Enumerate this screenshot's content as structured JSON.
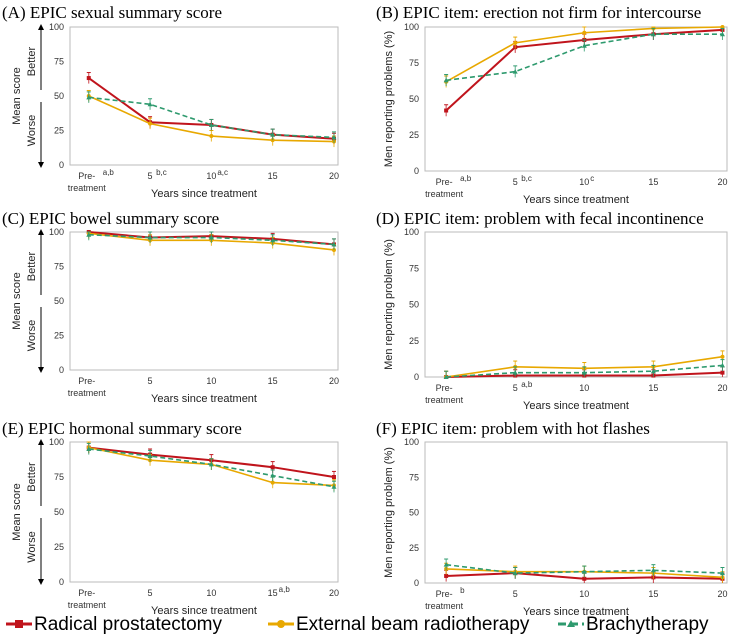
{
  "legend": [
    {
      "name": "Radical prostatectomy",
      "color": "#c0141c",
      "dash": false
    },
    {
      "name": "External beam radiotherapy",
      "color": "#e8a800",
      "dash": false
    },
    {
      "name": "Brachytherapy",
      "color": "#2e9a6e",
      "dash": true
    }
  ],
  "chart_data": [
    {
      "type": "line",
      "title": "(A) EPIC sexual summary score",
      "ylabel": "Mean score",
      "better_label": "Better",
      "worse_label": "Worse",
      "xlabel": "Years since treatment",
      "categories": [
        "Pre-\ntreatment",
        "5",
        "10",
        "15",
        "20"
      ],
      "superscripts": [
        "a,b",
        "b,c",
        "a,c",
        "",
        ""
      ],
      "ylim": [
        0,
        100
      ],
      "yticks": [
        0,
        25,
        50,
        75,
        100
      ],
      "series": [
        {
          "name": "Radical prostatectomy",
          "values": [
            63,
            31,
            29,
            22,
            19
          ]
        },
        {
          "name": "External beam radiotherapy",
          "values": [
            50,
            30,
            21,
            18,
            17
          ]
        },
        {
          "name": "Brachytherapy",
          "values": [
            49,
            44,
            29,
            22,
            20
          ]
        }
      ]
    },
    {
      "type": "line",
      "title": "(B) EPIC item: erection not firm for intercourse",
      "ylabel": "Men reporting problems (%)",
      "xlabel": "Years since treatment",
      "categories": [
        "Pre-\ntreatment",
        "5",
        "10",
        "15",
        "20"
      ],
      "superscripts": [
        "a,b",
        "b,c",
        "c",
        "",
        ""
      ],
      "ylim": [
        0,
        100
      ],
      "yticks": [
        0,
        25,
        50,
        75,
        100
      ],
      "series": [
        {
          "name": "Radical prostatectomy",
          "values": [
            42,
            86,
            91,
            95,
            98
          ]
        },
        {
          "name": "External beam radiotherapy",
          "values": [
            62,
            89,
            96,
            99,
            100
          ]
        },
        {
          "name": "Brachytherapy",
          "values": [
            63,
            69,
            87,
            95,
            95
          ]
        }
      ]
    },
    {
      "type": "line",
      "title": "(C) EPIC bowel summary score",
      "ylabel": "Mean score",
      "better_label": "Better",
      "worse_label": "Worse",
      "xlabel": "Years since treatment",
      "categories": [
        "Pre-\ntreatment",
        "5",
        "10",
        "15",
        "20"
      ],
      "superscripts": [
        "",
        "",
        "",
        "",
        ""
      ],
      "ylim": [
        0,
        100
      ],
      "yticks": [
        0,
        25,
        50,
        75,
        100
      ],
      "series": [
        {
          "name": "Radical prostatectomy",
          "values": [
            100,
            96,
            97,
            95,
            91
          ]
        },
        {
          "name": "External beam radiotherapy",
          "values": [
            99,
            94,
            94,
            92,
            87
          ]
        },
        {
          "name": "Brachytherapy",
          "values": [
            98,
            96,
            96,
            94,
            91
          ]
        }
      ]
    },
    {
      "type": "line",
      "title": "(D) EPIC item: problem with fecal incontinence",
      "ylabel": "Men reporting problem (%)",
      "xlabel": "Years since treatment",
      "categories": [
        "Pre-\ntreatment",
        "5",
        "10",
        "15",
        "20"
      ],
      "superscripts": [
        "",
        "a,b",
        "",
        "",
        ""
      ],
      "ylim": [
        0,
        100
      ],
      "yticks": [
        0,
        25,
        50,
        75,
        100
      ],
      "series": [
        {
          "name": "Radical prostatectomy",
          "values": [
            0,
            1,
            1,
            1,
            3
          ]
        },
        {
          "name": "External beam radiotherapy",
          "values": [
            0,
            7,
            6,
            7,
            14
          ]
        },
        {
          "name": "Brachytherapy",
          "values": [
            0,
            3,
            3,
            4,
            8
          ]
        }
      ]
    },
    {
      "type": "line",
      "title": "(E) EPIC hormonal summary score",
      "ylabel": "Mean score",
      "better_label": "Better",
      "worse_label": "Worse",
      "xlabel": "Years since treatment",
      "categories": [
        "Pre-\ntreatment",
        "5",
        "10",
        "15",
        "20"
      ],
      "superscripts": [
        "",
        "",
        "",
        "a,b",
        ""
      ],
      "ylim": [
        0,
        100
      ],
      "yticks": [
        0,
        25,
        50,
        75,
        100
      ],
      "series": [
        {
          "name": "Radical prostatectomy",
          "values": [
            96,
            91,
            87,
            82,
            75
          ]
        },
        {
          "name": "External beam radiotherapy",
          "values": [
            96,
            87,
            84,
            71,
            69
          ]
        },
        {
          "name": "Brachytherapy",
          "values": [
            95,
            90,
            84,
            76,
            68
          ]
        }
      ]
    },
    {
      "type": "line",
      "title": "(F) EPIC item: problem with hot flashes",
      "ylabel": "Men reporting problem (%)",
      "xlabel": "Years since treatment",
      "categories": [
        "Pre-\ntreatment",
        "5",
        "10",
        "15",
        "20"
      ],
      "superscripts": [
        "b",
        "",
        "",
        "",
        ""
      ],
      "ylim": [
        0,
        100
      ],
      "yticks": [
        0,
        25,
        50,
        75,
        100
      ],
      "series": [
        {
          "name": "Radical prostatectomy",
          "values": [
            5,
            7,
            3,
            4,
            3
          ]
        },
        {
          "name": "External beam radiotherapy",
          "values": [
            10,
            8,
            8,
            7,
            4
          ]
        },
        {
          "name": "Brachytherapy",
          "values": [
            13,
            7,
            8,
            9,
            7
          ]
        }
      ]
    }
  ]
}
